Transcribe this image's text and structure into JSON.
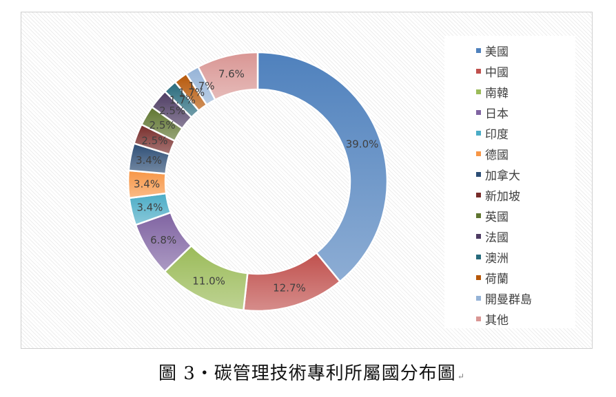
{
  "chart_data": {
    "type": "pie",
    "subtype": "donut",
    "title": "",
    "categories": [
      "美國",
      "中國",
      "南韓",
      "日本",
      "印度",
      "德國",
      "加拿大",
      "新加坡",
      "英國",
      "法國",
      "澳洲",
      "荷蘭",
      "開曼群島",
      "其他"
    ],
    "values": [
      39.0,
      12.7,
      11.0,
      6.8,
      3.4,
      3.4,
      3.4,
      2.5,
      2.5,
      2.5,
      1.7,
      1.7,
      1.7,
      7.6
    ],
    "labels": [
      "39.0%",
      "12.7%",
      "11.0%",
      "6.8%",
      "3.4%",
      "3.4%",
      "3.4%",
      "2.5%",
      "2.5%",
      "2.5%",
      "1.7%",
      "1.7%",
      "1.7%",
      "7.6%"
    ],
    "colors": [
      "#4F81BD",
      "#C0504D",
      "#9BBB59",
      "#8064A2",
      "#4BACC6",
      "#F79646",
      "#2C4D75",
      "#772C2A",
      "#5F7530",
      "#4D3B62",
      "#276A7C",
      "#B65708",
      "#95B3D7",
      "#D99694"
    ],
    "legend": "right",
    "unit": "%"
  },
  "caption": {
    "text": "圖 3‧碳管理技術專利所屬國分布圖",
    "mark": "↵"
  }
}
